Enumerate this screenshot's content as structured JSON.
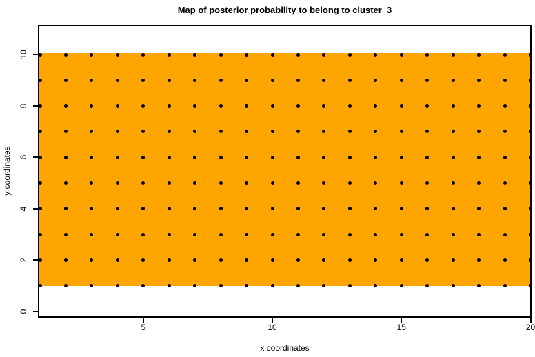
{
  "chart_data": {
    "type": "heatmap",
    "title": "Map of posterior probability to belong to cluster  3",
    "xlabel": "x coordinates",
    "ylabel": "y coordinates",
    "x_axis": {
      "tick_values": [
        5,
        10,
        15,
        20
      ],
      "range": [
        1,
        20
      ]
    },
    "y_axis": {
      "tick_values": [
        0,
        2,
        4,
        6,
        8,
        10
      ],
      "range": [
        0,
        10
      ]
    },
    "fill_region": {
      "color": "#FFA500",
      "x_extent": [
        1,
        20
      ],
      "y_extent": [
        1,
        10
      ],
      "meaning": "uniform posterior probability region for cluster 3"
    },
    "grid_points": {
      "marker": "filled-circle",
      "color": "#000000",
      "x_values": [
        1,
        2,
        3,
        4,
        5,
        6,
        7,
        8,
        9,
        10,
        11,
        12,
        13,
        14,
        15,
        16,
        17,
        18,
        19,
        20
      ],
      "y_values": [
        1,
        2,
        3,
        4,
        5,
        6,
        7,
        8,
        9,
        10
      ]
    },
    "layout": {
      "grid": "off",
      "legend": "none",
      "box": "full"
    }
  }
}
